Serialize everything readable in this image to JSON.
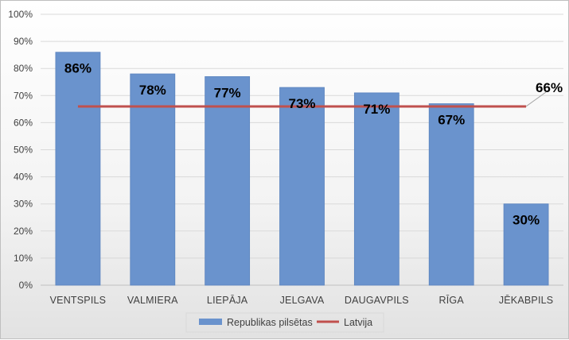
{
  "chart_data": {
    "type": "bar",
    "categories": [
      "VENTSPILS",
      "VALMIERA",
      "LIEPĀJA",
      "JELGAVA",
      "DAUGAVPILS",
      "RĪGA",
      "JĒKABPILS"
    ],
    "series": [
      {
        "name": "Republikas pilsētas",
        "type": "bar",
        "values": [
          86,
          78,
          77,
          73,
          71,
          67,
          30
        ],
        "labels": [
          "86%",
          "78%",
          "77%",
          "73%",
          "71%",
          "67%",
          "30%"
        ],
        "color": "#6a93cd"
      },
      {
        "name": "Latvija",
        "type": "line",
        "values": [
          66,
          66,
          66,
          66,
          66,
          66,
          66
        ],
        "label": "66%",
        "color": "#c0504d"
      }
    ],
    "yticks": [
      "0%",
      "10%",
      "20%",
      "30%",
      "40%",
      "50%",
      "60%",
      "70%",
      "80%",
      "90%",
      "100%"
    ],
    "ylim": [
      0,
      100
    ],
    "grid": true,
    "legend_position": "bottom"
  }
}
